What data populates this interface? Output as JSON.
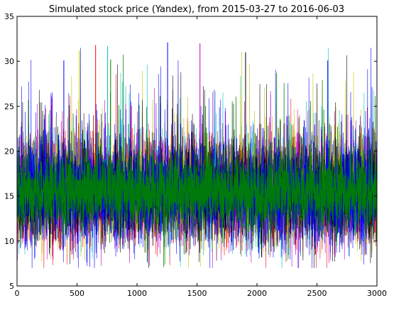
{
  "chart_data": {
    "type": "line",
    "title": "Simulated stock price (Yandex), from 2015-03-27 to 2016-06-03",
    "xlabel": "",
    "ylabel": "",
    "xlim": [
      0,
      3000
    ],
    "ylim": [
      5,
      35
    ],
    "x_ticks": [
      0,
      500,
      1000,
      1500,
      2000,
      2500,
      3000
    ],
    "y_ticks": [
      5,
      10,
      15,
      20,
      25,
      30,
      35
    ],
    "grid": false,
    "legend": false,
    "n_points": 3000,
    "series_colors": [
      "#0000ff",
      "#ff0000",
      "#00bfbf",
      "#bf00bf",
      "#bfbf00",
      "#000000",
      "#0000ff",
      "#008000"
    ],
    "value_summary": {
      "typical_low": 10,
      "typical_high": 22,
      "center": 15.5,
      "max_observed": 32.1,
      "min_observed": 7.0
    },
    "peaks": [
      {
        "x": 1255,
        "y": 32.1
      },
      {
        "x": 655,
        "y": 31.8
      },
      {
        "x": 755,
        "y": 31.7
      },
      {
        "x": 1525,
        "y": 32.0
      },
      {
        "x": 520,
        "y": 31.2
      },
      {
        "x": 1905,
        "y": 31.0
      },
      {
        "x": 2590,
        "y": 30.1
      },
      {
        "x": 780,
        "y": 30.2
      },
      {
        "x": 390,
        "y": 30.1
      }
    ]
  }
}
